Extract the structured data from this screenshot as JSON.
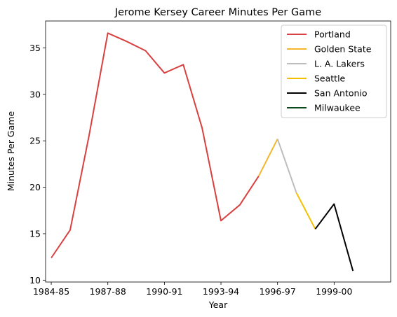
{
  "chart_data": {
    "type": "line",
    "title": "Jerome Kersey Career Minutes Per Game",
    "xlabel": "Year",
    "ylabel": "Minutes Per Game",
    "ylim": [
      9.8,
      37.9
    ],
    "yticks": [
      10,
      15,
      20,
      25,
      30,
      35
    ],
    "xlim": [
      1983.7,
      2002.0
    ],
    "xticks": [
      {
        "x": 1984,
        "label": "1984-85"
      },
      {
        "x": 1987,
        "label": "1987-88"
      },
      {
        "x": 1990,
        "label": "1990-91"
      },
      {
        "x": 1993,
        "label": "1993-94"
      },
      {
        "x": 1996,
        "label": "1996-97"
      },
      {
        "x": 1999,
        "label": "1999-00"
      }
    ],
    "legend_position": "top-right",
    "grid": false,
    "series": [
      {
        "name": "Portland",
        "color": "#d94040",
        "x": [
          1984,
          1985,
          1986,
          1987,
          1988,
          1989,
          1990,
          1991,
          1992,
          1993,
          1994,
          1995
        ],
        "y": [
          12.4,
          15.4,
          25.5,
          36.6,
          35.7,
          34.7,
          32.3,
          33.2,
          26.4,
          16.4,
          18.1,
          21.2
        ]
      },
      {
        "name": "Golden State",
        "color": "#f4b630",
        "x": [
          1995,
          1996
        ],
        "y": [
          21.2,
          25.2
        ]
      },
      {
        "name": "L. A. Lakers",
        "color": "#bdbdbd",
        "x": [
          1996,
          1997
        ],
        "y": [
          25.2,
          19.4
        ]
      },
      {
        "name": "Seattle",
        "color": "#f5c000",
        "x": [
          1997,
          1998
        ],
        "y": [
          19.4,
          15.5
        ]
      },
      {
        "name": "San Antonio",
        "color": "#000000",
        "x": [
          1998,
          1999,
          2000
        ],
        "y": [
          15.5,
          18.2,
          11.0
        ]
      },
      {
        "name": "Milwaukee",
        "color": "#0c4a1e",
        "x": [],
        "y": []
      }
    ]
  }
}
